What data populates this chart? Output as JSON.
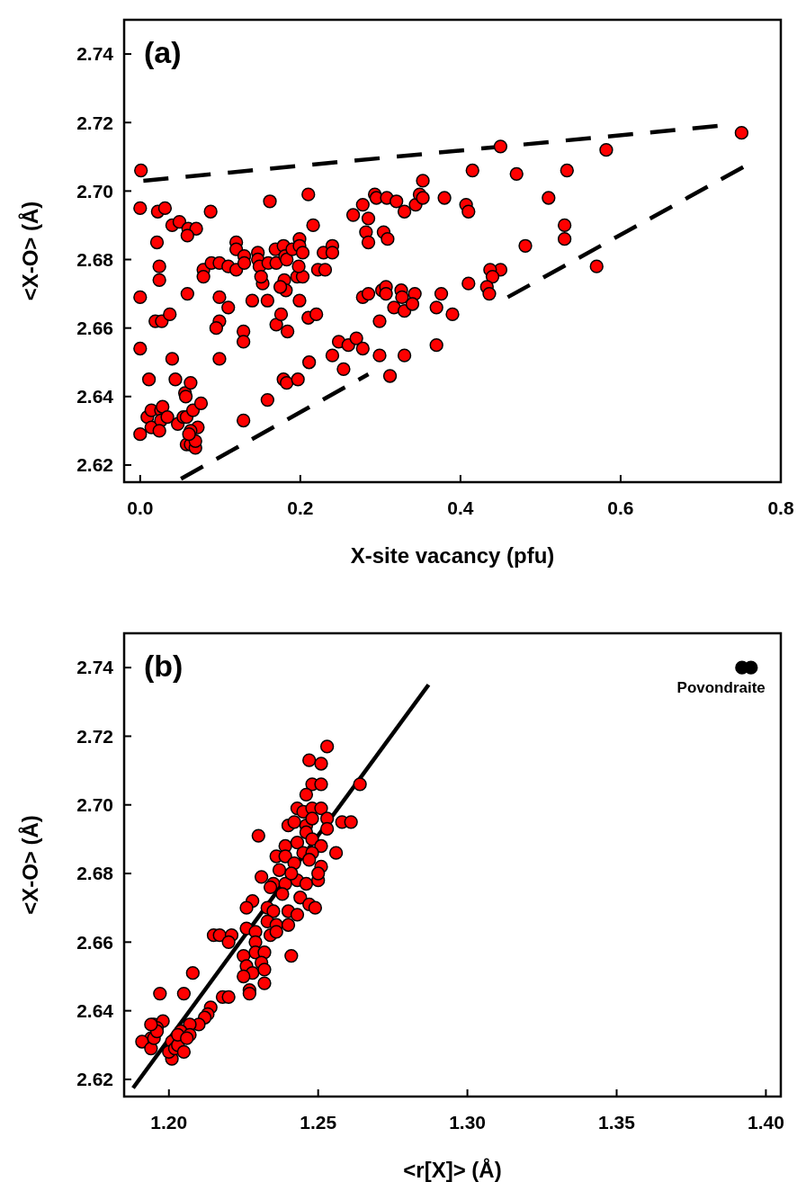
{
  "chart_data": [
    {
      "type": "scatter",
      "xlabel": "X-site vacancy (pfu)",
      "ylabel": "<X-O> (Å)",
      "annotations": [
        "(a)"
      ],
      "xlim": [
        -0.02,
        0.8
      ],
      "ylim": [
        2.615,
        2.75
      ],
      "xticks": [
        {
          "value": 0,
          "label": "0.0"
        },
        0.2,
        0.4,
        0.6,
        0.8
      ],
      "yticks": [
        2.62,
        2.64,
        2.66,
        2.68,
        {
          "value": 2.7,
          "label": "2.70"
        },
        2.72,
        2.74
      ],
      "marker": "circle",
      "series": [
        {
          "type": "line",
          "marker": "none",
          "line_style": "dashed",
          "color": "#000000",
          "x": [
            0.004,
            0.721
          ],
          "values": [
            2.703,
            2.719
          ]
        },
        {
          "type": "line",
          "marker": "none",
          "line_style": "dashed",
          "color": "#000000",
          "x": [
            0.051,
            0.285,
            0.372,
            0.459,
            0.753
          ],
          "values": [
            2.616,
            2.6465,
            null,
            2.669,
            2.707
          ]
        },
        {
          "color": "#ff0000",
          "x": [
            0,
            0,
            0,
            0.011,
            0.009,
            0.014,
            0.014,
            0.019,
            0.024,
            0.024,
            0.027,
            0.037,
            0.026,
            0.028,
            0.026,
            0.024,
            0.034,
            0.04,
            0.044,
            0.047,
            0.059,
            0.056,
            0.057,
            0.063,
            0.054,
            0.058,
            0.066,
            0.076,
            0.072,
            0.063,
            0.058,
            0.063,
            0.069,
            0.069,
            0.061,
            0.079,
            0.079,
            0.089,
            0.099,
            0.11,
            0.12,
            0.099,
            0.099,
            0.095,
            0.11,
            0.099,
            0.129,
            0.129,
            0.129,
            0.14,
            0.159,
            0.159,
            0.17,
            0.176,
            0.184,
            0.179,
            0.183,
            0.197,
            0.199,
            0.21,
            0.22,
            0.211,
            0.24,
            0.248,
            0.26,
            0.27,
            0.278,
            0.254,
            0.278,
            0.285,
            0.299,
            0.299,
            0.312,
            0.33,
            0.302,
            0.307,
            0.307,
            0.317,
            0.326,
            0.327,
            0.33,
            0.18,
            0.182,
            0.196,
            0.203,
            0.222,
            0.231,
            0.153,
            0.001,
            0,
            0.022,
            0.031,
            0.04,
            0.049,
            0.06,
            0.07,
            0.059,
            0.088,
            0.021,
            0.12,
            0.12,
            0.13,
            0.13,
            0.147,
            0.147,
            0.149,
            0.151,
            0.16,
            0.162,
            0.17,
            0.169,
            0.179,
            0.181,
            0.183,
            0.19,
            0.199,
            0.199,
            0.203,
            0.198,
            0.175,
            0.21,
            0.216,
            0.229,
            0.24,
            0.24,
            0.266,
            0.278,
            0.293,
            0.295,
            0.308,
            0.32,
            0.33,
            0.285,
            0.282,
            0.285,
            0.304,
            0.309,
            0.344,
            0.349,
            0.353,
            0.353,
            0.38,
            0.407,
            0.41,
            0.415,
            0.45,
            0.47,
            0.533,
            0.51,
            0.582,
            0.751,
            0.53,
            0.53,
            0.481,
            0.57,
            0.45,
            0.437,
            0.44,
            0.41,
            0.433,
            0.436,
            0.376,
            0.37,
            0.39,
            0.343,
            0.34,
            0.37
          ],
          "values": [
            2.669,
            2.654,
            2.629,
            2.645,
            2.634,
            2.636,
            2.631,
            2.662,
            2.678,
            2.674,
            2.662,
            2.664,
            2.636,
            2.637,
            2.633,
            2.63,
            2.634,
            2.651,
            2.645,
            2.632,
            2.67,
            2.641,
            2.64,
            2.644,
            2.634,
            2.634,
            2.636,
            2.638,
            2.631,
            2.63,
            2.626,
            2.626,
            2.625,
            2.627,
            2.629,
            2.677,
            2.675,
            2.679,
            2.679,
            2.678,
            2.677,
            2.669,
            2.662,
            2.66,
            2.666,
            2.651,
            2.659,
            2.656,
            2.633,
            2.668,
            2.668,
            2.639,
            2.661,
            2.664,
            2.659,
            2.645,
            2.644,
            2.645,
            2.668,
            2.663,
            2.664,
            2.65,
            2.652,
            2.656,
            2.655,
            2.657,
            2.654,
            2.648,
            2.669,
            2.67,
            2.662,
            2.652,
            2.646,
            2.652,
            2.671,
            2.672,
            2.67,
            2.666,
            2.671,
            2.669,
            2.665,
            2.674,
            2.671,
            2.675,
            2.675,
            2.677,
            2.677,
            2.673,
            2.706,
            2.695,
            2.694,
            2.695,
            2.69,
            2.691,
            2.689,
            2.689,
            2.687,
            2.694,
            2.685,
            2.685,
            2.683,
            2.681,
            2.679,
            2.682,
            2.68,
            2.678,
            2.675,
            2.679,
            2.697,
            2.679,
            2.683,
            2.684,
            2.681,
            2.68,
            2.683,
            2.686,
            2.684,
            2.682,
            2.678,
            2.672,
            2.699,
            2.69,
            2.682,
            2.684,
            2.682,
            2.693,
            2.696,
            2.699,
            2.698,
            2.698,
            2.697,
            2.694,
            2.692,
            2.688,
            2.685,
            2.688,
            2.686,
            2.696,
            2.699,
            2.698,
            2.703,
            2.698,
            2.696,
            2.694,
            2.706,
            2.713,
            2.705,
            2.706,
            2.698,
            2.712,
            2.717,
            2.69,
            2.686,
            2.684,
            2.678,
            2.677,
            2.677,
            2.675,
            2.673,
            2.672,
            2.67,
            2.67,
            2.666,
            2.664,
            2.67,
            2.667,
            2.655
          ]
        }
      ]
    },
    {
      "type": "scatter",
      "xlabel": "<r[X]> (Å)",
      "ylabel": "<X-O> (Å)",
      "annotations": [
        "(b)"
      ],
      "xlim": [
        1.185,
        1.405
      ],
      "ylim": [
        2.615,
        2.75
      ],
      "xticks": [
        {
          "value": 1.2,
          "label": "1.20"
        },
        1.25,
        {
          "value": 1.3,
          "label": "1.30"
        },
        1.35,
        {
          "value": 1.4,
          "label": "1.40"
        }
      ],
      "yticks": [
        2.62,
        2.64,
        2.66,
        2.68,
        {
          "value": 2.7,
          "label": "2.70"
        },
        2.72,
        2.74
      ],
      "marker": "circle",
      "series": [
        {
          "type": "line",
          "marker": "none",
          "line_style": "solid",
          "color": "#000000",
          "x": [
            1.188,
            1.287
          ],
          "values": [
            2.6175,
            2.735
          ]
        },
        {
          "color": "#ff0000",
          "x": [
            1.253,
            1.247,
            1.251,
            1.264,
            1.248,
            1.251,
            1.246,
            1.243,
            1.245,
            1.248,
            1.251,
            1.253,
            1.253,
            1.258,
            1.261,
            1.24,
            1.242,
            1.23,
            1.246,
            1.248,
            1.246,
            1.248,
            1.251,
            1.256,
            1.239,
            1.243,
            1.236,
            1.239,
            1.242,
            1.245,
            1.248,
            1.247,
            1.251,
            1.237,
            1.231,
            1.235,
            1.239,
            1.243,
            1.246,
            1.25,
            1.25,
            1.234,
            1.238,
            1.241,
            1.244,
            1.247,
            1.249,
            1.228,
            1.226,
            1.233,
            1.235,
            1.24,
            1.243,
            1.233,
            1.236,
            1.24,
            1.234,
            1.236,
            1.226,
            1.229,
            1.215,
            1.217,
            1.221,
            1.22,
            1.229,
            1.225,
            1.229,
            1.232,
            1.231,
            1.241,
            1.226,
            1.228,
            1.225,
            1.232,
            1.232,
            1.227,
            1.227,
            1.208,
            1.197,
            1.205,
            1.218,
            1.22,
            1.214,
            1.213,
            1.212,
            1.21,
            1.207,
            1.204,
            1.195,
            1.198,
            1.196,
            1.194,
            1.201,
            1.207,
            1.191,
            1.194,
            1.195,
            1.196,
            1.194,
            1.201,
            1.2,
            1.202,
            1.203,
            1.205,
            1.203,
            1.206
          ],
          "values": [
            2.717,
            2.713,
            2.712,
            2.706,
            2.706,
            2.706,
            2.703,
            2.699,
            2.698,
            2.699,
            2.699,
            2.696,
            2.693,
            2.695,
            2.695,
            2.694,
            2.695,
            2.691,
            2.694,
            2.696,
            2.692,
            2.69,
            2.688,
            2.686,
            2.688,
            2.689,
            2.685,
            2.685,
            2.683,
            2.686,
            2.686,
            2.684,
            2.682,
            2.681,
            2.679,
            2.677,
            2.677,
            2.678,
            2.677,
            2.678,
            2.68,
            2.676,
            2.674,
            2.68,
            2.673,
            2.671,
            2.67,
            2.672,
            2.67,
            2.67,
            2.669,
            2.669,
            2.668,
            2.666,
            2.665,
            2.665,
            2.662,
            2.663,
            2.664,
            2.663,
            2.662,
            2.662,
            2.662,
            2.66,
            2.66,
            2.656,
            2.657,
            2.657,
            2.654,
            2.656,
            2.653,
            2.651,
            2.65,
            2.652,
            2.648,
            2.646,
            2.645,
            2.651,
            2.645,
            2.645,
            2.644,
            2.644,
            2.641,
            2.639,
            2.638,
            2.636,
            2.636,
            2.634,
            2.636,
            2.637,
            2.635,
            2.632,
            2.631,
            2.633,
            2.631,
            2.629,
            2.632,
            2.634,
            2.636,
            2.626,
            2.628,
            2.629,
            2.63,
            2.628,
            2.633,
            2.632
          ]
        },
        {
          "name": "Povondraite",
          "color": "#000000",
          "x": [
            1.392,
            1.395
          ],
          "values": [
            2.74,
            2.74
          ]
        }
      ]
    }
  ]
}
